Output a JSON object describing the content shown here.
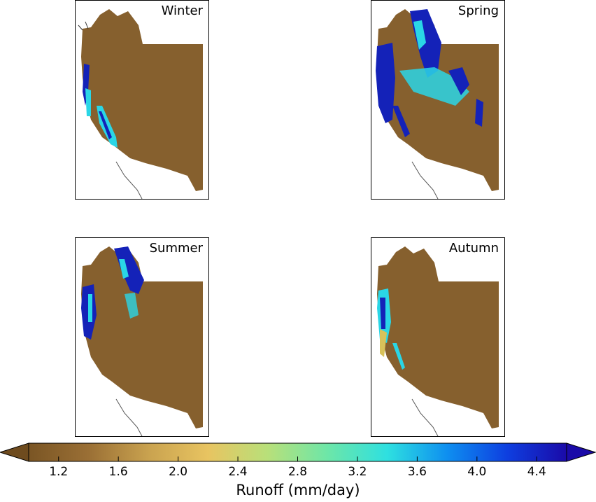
{
  "panels": [
    {
      "id": "winter",
      "title": "Winter"
    },
    {
      "id": "spring",
      "title": "Spring"
    },
    {
      "id": "summer",
      "title": "Summer"
    },
    {
      "id": "autumn",
      "title": "Autumn"
    }
  ],
  "colorbar": {
    "label": "Runoff (mm/day)",
    "ticks": [
      "1.2",
      "1.6",
      "2.0",
      "2.4",
      "2.8",
      "3.2",
      "3.6",
      "4.0",
      "4.4"
    ],
    "range": [
      1.0,
      4.6
    ],
    "extend": "both",
    "colors": [
      "#7a5524",
      "#9a6f35",
      "#c9a24f",
      "#e8c461",
      "#b8e07a",
      "#6de6a8",
      "#2ee0e0",
      "#0e8ff0",
      "#0e3fe0",
      "#1a0aa8"
    ]
  },
  "colors": {
    "land": "#86602e",
    "high_runoff": "#1422b8",
    "mid_runoff": "#2ad6e6",
    "low_runoff": "#d8c25a"
  }
}
